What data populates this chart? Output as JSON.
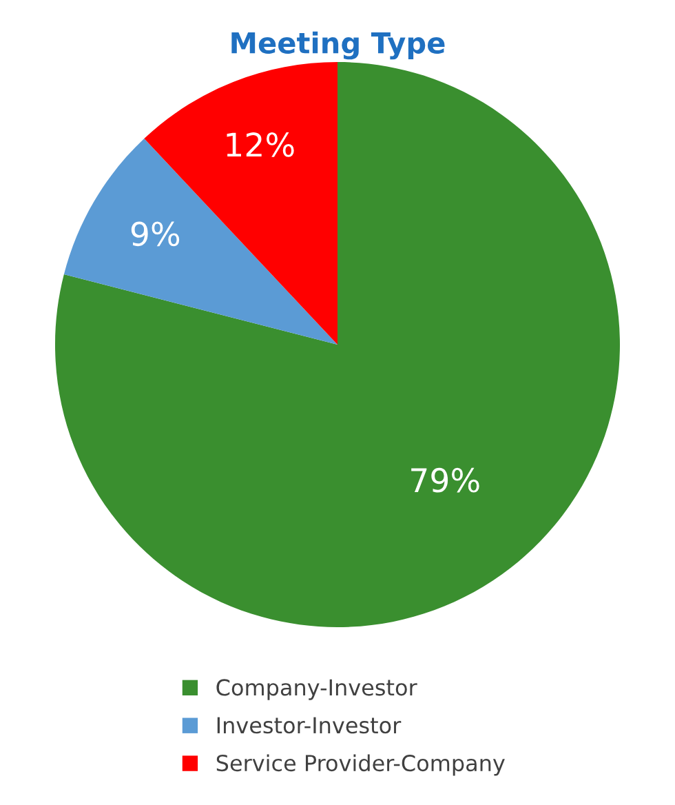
{
  "chart_data": {
    "type": "pie",
    "title": "Meeting Type",
    "categories": [
      "Company-Investor",
      "Investor-Investor",
      "Service Provider-Company"
    ],
    "values": [
      79,
      9,
      12
    ],
    "colors": [
      "#3a8f2f",
      "#5b9bd5",
      "#ff0000"
    ],
    "value_labels": [
      "79%",
      "9%",
      "12%"
    ],
    "legend": "bottom"
  }
}
